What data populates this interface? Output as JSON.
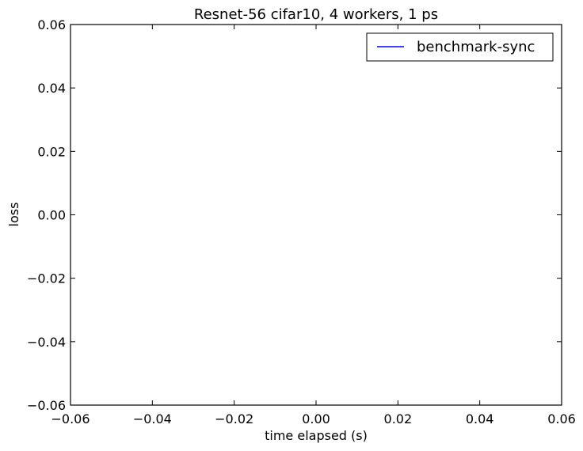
{
  "chart_data": {
    "type": "line",
    "title": "Resnet-56 cifar10, 4 workers, 1 ps",
    "xlabel": "time elapsed (s)",
    "ylabel": "loss",
    "xlim": [
      -0.06,
      0.06
    ],
    "ylim": [
      -0.06,
      0.06
    ],
    "xticks": [
      -0.06,
      -0.04,
      -0.02,
      0.0,
      0.02,
      0.04,
      0.06
    ],
    "yticks": [
      -0.06,
      -0.04,
      -0.02,
      0.0,
      0.02,
      0.04,
      0.06
    ],
    "xtick_labels": [
      "−0.06",
      "−0.04",
      "−0.02",
      "0.00",
      "0.02",
      "0.04",
      "0.06"
    ],
    "ytick_labels": [
      "−0.06",
      "−0.04",
      "−0.02",
      "0.00",
      "0.02",
      "0.04",
      "0.06"
    ],
    "grid": false,
    "legend_position": "top-right",
    "series": [
      {
        "name": "benchmark-sync",
        "color": "#0000ff",
        "x": [],
        "y": []
      }
    ]
  }
}
